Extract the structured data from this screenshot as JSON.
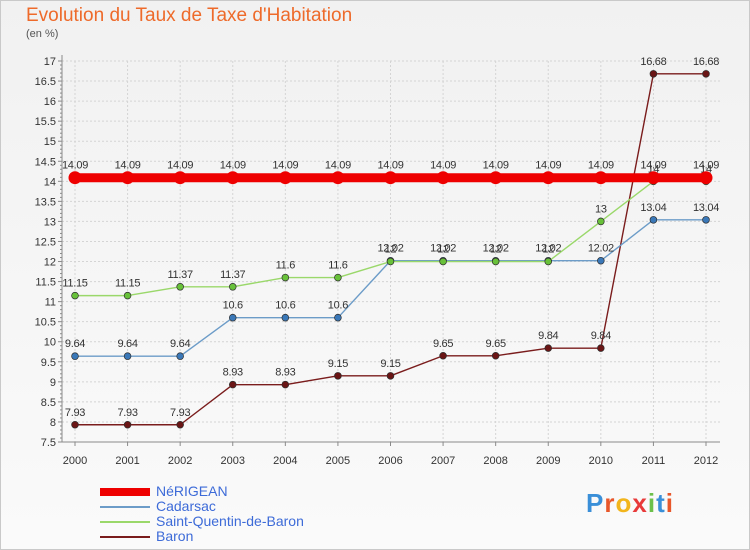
{
  "title": "Evolution du Taux de Taxe d'Habitation",
  "unit_label": "(en %)",
  "logo_text": "Proxiti",
  "colors": {
    "title": "#ee6a2a",
    "grid": "#d4d4d4",
    "axis": "#8a8a8a",
    "legend_text": "#3d6bd8"
  },
  "chart_data": {
    "type": "line",
    "x": [
      "2000",
      "2001",
      "2002",
      "2003",
      "2004",
      "2005",
      "2006",
      "2007",
      "2008",
      "2009",
      "2010",
      "2011",
      "2012"
    ],
    "ylim": [
      7.5,
      17
    ],
    "yticks": [
      7.5,
      8,
      8.5,
      9,
      9.5,
      10,
      10.5,
      11,
      11.5,
      12,
      12.5,
      13,
      13.5,
      14,
      14.5,
      15,
      15.5,
      16,
      16.5,
      17
    ],
    "ytick_labels": [
      "7.5",
      "8",
      "8.5",
      "9",
      "9.5",
      "10",
      "10.5",
      "11",
      "11.5",
      "12",
      "12.5",
      "13",
      "13.5",
      "14",
      "14.5",
      "15",
      "15.5",
      "16",
      "16.5",
      "17"
    ],
    "grid": true,
    "legend_position": "bottom-left",
    "series": [
      {
        "name": "Baron",
        "color": "#7a1c1c",
        "marker": "#6a1515",
        "values": [
          7.93,
          7.93,
          7.93,
          8.93,
          8.93,
          9.15,
          9.15,
          9.65,
          9.65,
          9.84,
          9.84,
          16.68,
          16.68
        ],
        "labels": [
          "7.93",
          "7.93",
          "7.93",
          "8.93",
          "8.93",
          "9.15",
          "9.15",
          "9.65",
          "9.65",
          "9.84",
          "9.84",
          "16.68",
          "16.68"
        ]
      },
      {
        "name": "Cadarsac",
        "color": "#6c9cc8",
        "marker": "#3a78b8",
        "values": [
          9.64,
          9.64,
          9.64,
          10.6,
          10.6,
          10.6,
          12.02,
          12.02,
          12.02,
          12.02,
          12.02,
          13.04,
          13.04
        ],
        "labels": [
          "9.64",
          "9.64",
          "9.64",
          "10.6",
          "10.6",
          "10.6",
          "12.02",
          "12.02",
          "12.02",
          "12.02",
          "12.02",
          "13.04",
          "13.04"
        ]
      },
      {
        "name": "Saint-Quentin-de-Baron",
        "color": "#9ad86a",
        "marker": "#68c13a",
        "values": [
          11.15,
          11.15,
          11.37,
          11.37,
          11.6,
          11.6,
          12,
          12,
          12,
          12,
          13,
          14,
          14
        ],
        "labels": [
          "11.15",
          "11.15",
          "11.37",
          "11.37",
          "11.6",
          "11.6",
          "12",
          "12",
          "12",
          "12",
          "13",
          "14",
          "14"
        ]
      },
      {
        "name": "NéRIGEAN",
        "color": "#ee0000",
        "marker": "#ee0000",
        "values": [
          14.09,
          14.09,
          14.09,
          14.09,
          14.09,
          14.09,
          14.09,
          14.09,
          14.09,
          14.09,
          14.09,
          14.09,
          14.09
        ],
        "labels": [
          "14.09",
          "14.09",
          "14.09",
          "14.09",
          "14.09",
          "14.09",
          "14.09",
          "14.09",
          "14.09",
          "14.09",
          "14.09",
          "14.09",
          "14.09"
        ]
      }
    ],
    "legend_order": [
      "NéRIGEAN",
      "Cadarsac",
      "Saint-Quentin-de-Baron",
      "Baron"
    ]
  }
}
